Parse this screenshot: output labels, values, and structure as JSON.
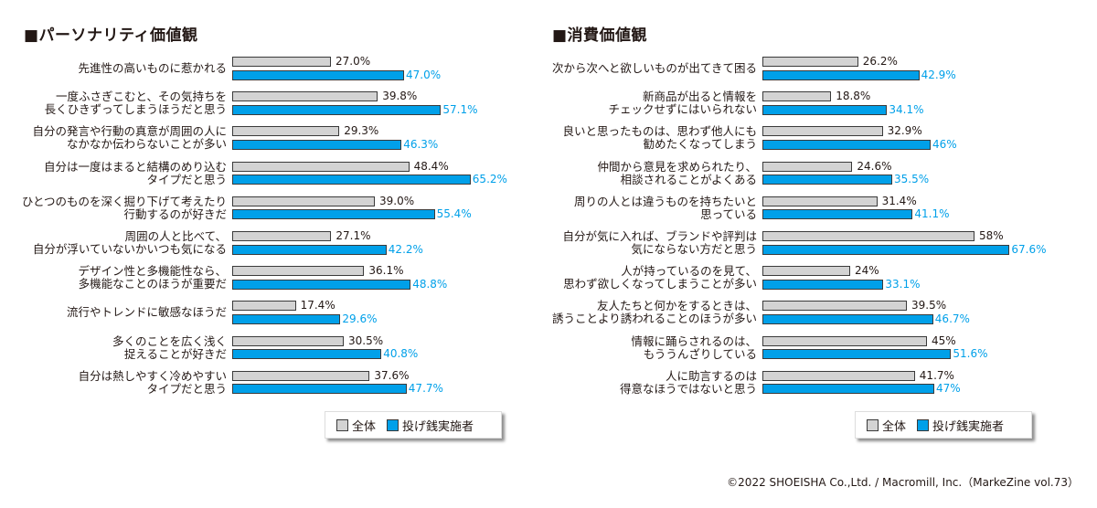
{
  "chart_data": [
    {
      "type": "bar",
      "title": "■パーソナリティ価値観",
      "categories": [
        [
          "先進性の高いものに惹かれる"
        ],
        [
          "一度ふさぎこむと、その気持ちを",
          "長くひきずってしまうほうだと思う"
        ],
        [
          "自分の発言や行動の真意が周囲の人に",
          "なかなか伝わらないことが多い"
        ],
        [
          "自分は一度はまると結構のめり込む",
          "タイプだと思う"
        ],
        [
          "ひとつのものを深く掘り下げて考えたり",
          "行動するのが好きだ"
        ],
        [
          "周囲の人と比べて、",
          "自分が浮いていないかいつも気になる"
        ],
        [
          "デザイン性と多機能性なら、",
          "多機能なことのほうが重要だ"
        ],
        [
          "流行やトレンドに敏感なほうだ"
        ],
        [
          "多くのことを広く浅く",
          "捉えることが好きだ"
        ],
        [
          "自分は熱しやすく冷めやすい",
          "タイプだと思う"
        ]
      ],
      "series": [
        {
          "name": "全体",
          "color": "#d3d3d3",
          "values": [
            27.0,
            39.8,
            29.3,
            48.4,
            39.0,
            27.1,
            36.1,
            17.4,
            30.5,
            37.6
          ],
          "labels": [
            "27.0%",
            "39.8%",
            "29.3%",
            "48.4%",
            "39.0%",
            "27.1%",
            "36.1%",
            "17.4%",
            "30.5%",
            "37.6%"
          ]
        },
        {
          "name": "投げ銭実施者",
          "color": "#00a0e9",
          "values": [
            47.0,
            57.1,
            46.3,
            65.2,
            55.4,
            42.2,
            48.8,
            29.6,
            40.8,
            47.7
          ],
          "labels": [
            "47.0%",
            "57.1%",
            "46.3%",
            "65.2%",
            "55.4%",
            "42.2%",
            "48.8%",
            "29.6%",
            "40.8%",
            "47.7%"
          ]
        }
      ],
      "xlim": [
        0,
        100
      ],
      "grid": false,
      "legend": "bottom-right"
    },
    {
      "type": "bar",
      "title": "■消費価値観",
      "categories": [
        [
          "次から次へと欲しいものが出てきて困る"
        ],
        [
          "新商品が出ると情報を",
          "チェックせずにはいられない"
        ],
        [
          "良いと思ったものは、思わず他人にも",
          "勧めたくなってしまう"
        ],
        [
          "仲間から意見を求められたり、",
          "相談されることがよくある"
        ],
        [
          "周りの人とは違うものを持ちたいと",
          "思っている"
        ],
        [
          "自分が気に入れば、ブランドや評判は",
          "気にならない方だと思う"
        ],
        [
          "人が持っているのを見て、",
          "思わず欲しくなってしまうことが多い"
        ],
        [
          "友人たちと何かをするときは、",
          "誘うことより誘われることのほうが多い"
        ],
        [
          "情報に踊らされるのは、",
          "もううんざりしている"
        ],
        [
          "人に助言するのは",
          "得意なほうではないと思う"
        ]
      ],
      "series": [
        {
          "name": "全体",
          "color": "#d3d3d3",
          "values": [
            26.2,
            18.8,
            32.9,
            24.6,
            31.4,
            58,
            24,
            39.5,
            45,
            41.7
          ],
          "labels": [
            "26.2%",
            "18.8%",
            "32.9%",
            "24.6%",
            "31.4%",
            "58%",
            "24%",
            "39.5%",
            "45%",
            "41.7%"
          ]
        },
        {
          "name": "投げ銭実施者",
          "color": "#00a0e9",
          "values": [
            42.9,
            34.1,
            46,
            35.5,
            41.1,
            67.6,
            33.1,
            46.7,
            51.6,
            47
          ],
          "labels": [
            "42.9%",
            "34.1%",
            "46%",
            "35.5%",
            "41.1%",
            "67.6%",
            "33.1%",
            "46.7%",
            "51.6%",
            "47%"
          ]
        }
      ],
      "xlim": [
        0,
        100
      ],
      "grid": false,
      "legend": "bottom-right"
    }
  ],
  "copyright": "©2022 SHOEISHA Co.,Ltd. / Macromill, Inc.（MarkeZine vol.73）"
}
